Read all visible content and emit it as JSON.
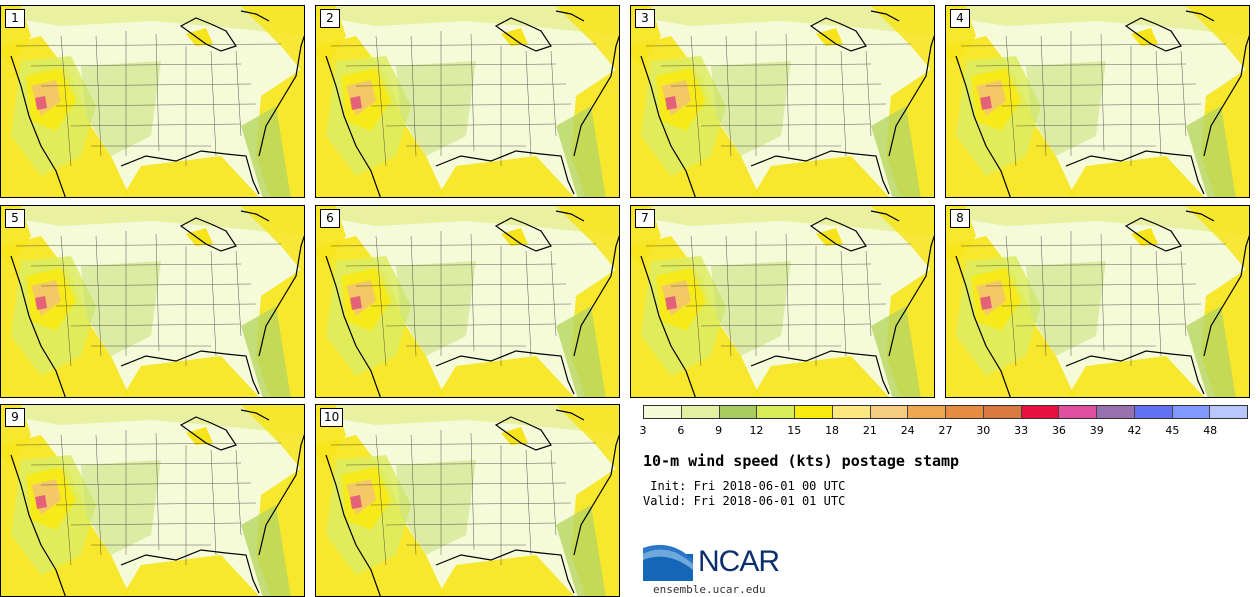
{
  "stamps": [
    {
      "label": "1"
    },
    {
      "label": "2"
    },
    {
      "label": "3"
    },
    {
      "label": "4"
    },
    {
      "label": "5"
    },
    {
      "label": "6"
    },
    {
      "label": "7"
    },
    {
      "label": "8"
    },
    {
      "label": "9"
    },
    {
      "label": "10"
    }
  ],
  "colorbar": {
    "ticks": [
      "3",
      "6",
      "9",
      "12",
      "15",
      "18",
      "21",
      "24",
      "27",
      "30",
      "33",
      "36",
      "39",
      "42",
      "45",
      "48"
    ],
    "colors": [
      "#f4f9d8",
      "#e2f0a0",
      "#a8cc60",
      "#d8ec58",
      "#f9ea10",
      "#fde880",
      "#f6cc80",
      "#f0a850",
      "#e58c40",
      "#d87a40",
      "#e8103c",
      "#e050a0",
      "#9870b0",
      "#6070f0",
      "#8098ff",
      "#b8c8ff"
    ]
  },
  "title": "10-m wind speed (kts) postage stamp",
  "init": " Init: Fri 2018-06-01 00 UTC",
  "valid": "Valid: Fri 2018-06-01 01 UTC",
  "logo": {
    "text": "NCAR"
  },
  "site": "ensemble.ucar.edu"
}
